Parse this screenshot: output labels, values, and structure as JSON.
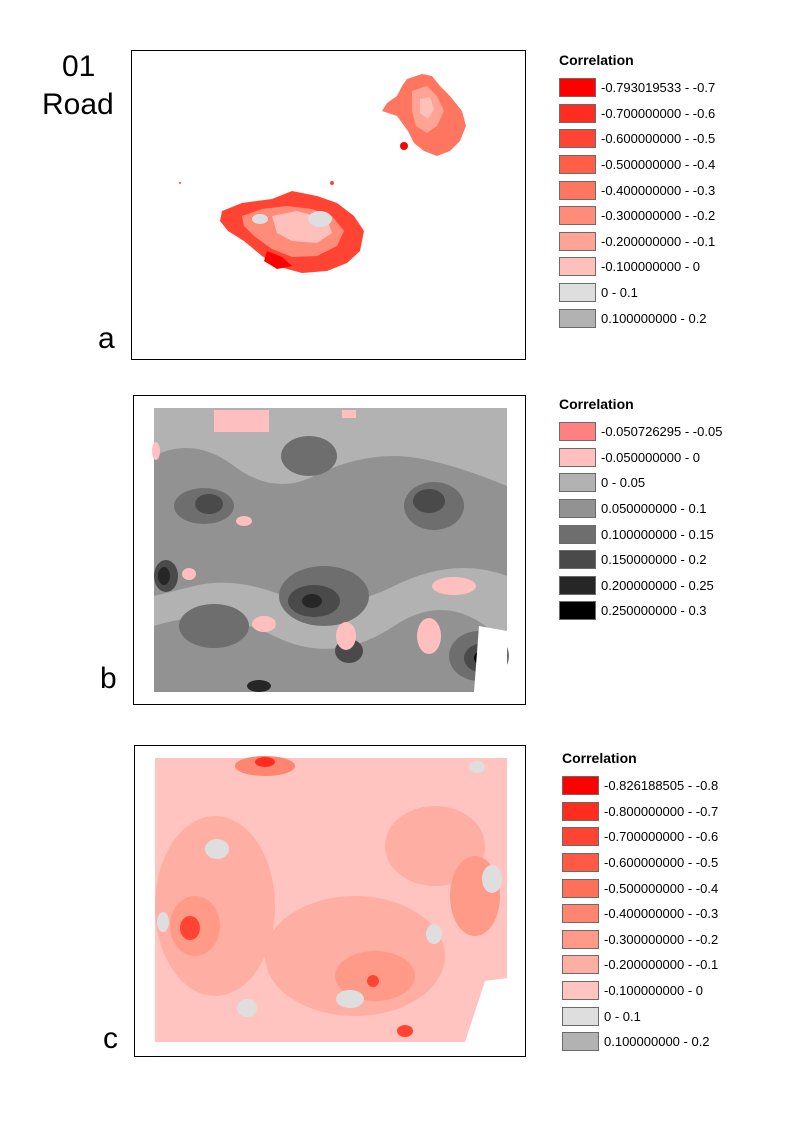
{
  "header": {
    "number": "01",
    "variable": "Road"
  },
  "panels": [
    {
      "letter": "a",
      "legend": {
        "title": "Correlation",
        "items": [
          {
            "label": "-0.793019533 - -0.7",
            "color": "#ff0000"
          },
          {
            "label": "-0.700000000 - -0.6",
            "color": "#ff2d1f"
          },
          {
            "label": "-0.600000000 - -0.5",
            "color": "#ff4433"
          },
          {
            "label": "-0.500000000 - -0.4",
            "color": "#ff5e49"
          },
          {
            "label": "-0.400000000 - -0.3",
            "color": "#ff7660"
          },
          {
            "label": "-0.300000000 - -0.2",
            "color": "#ff8c79"
          },
          {
            "label": "-0.200000000 - -0.1",
            "color": "#ffa394"
          },
          {
            "label": "-0.100000000 - 0",
            "color": "#ffc0bb"
          },
          {
            "label": "0 - 0.1",
            "color": "#dedede"
          },
          {
            "label": "0.100000000 - 0.2",
            "color": "#b2b2b2"
          }
        ]
      }
    },
    {
      "letter": "b",
      "legend": {
        "title": "Correlation",
        "items": [
          {
            "label": "-0.050726295 - -0.05",
            "color": "#ff8080"
          },
          {
            "label": "-0.050000000 - 0",
            "color": "#ffbfbf"
          },
          {
            "label": "0 - 0.05",
            "color": "#b2b2b2"
          },
          {
            "label": "0.050000000 - 0.1",
            "color": "#929292"
          },
          {
            "label": "0.100000000 - 0.15",
            "color": "#6e6e6e"
          },
          {
            "label": "0.150000000 - 0.2",
            "color": "#4a4a4a"
          },
          {
            "label": "0.200000000 - 0.25",
            "color": "#262626"
          },
          {
            "label": "0.250000000 - 0.3",
            "color": "#000000"
          }
        ]
      }
    },
    {
      "letter": "c",
      "legend": {
        "title": "Correlation",
        "items": [
          {
            "label": "-0.826188505 - -0.8",
            "color": "#ff0000"
          },
          {
            "label": "-0.800000000 - -0.7",
            "color": "#ff2d1f"
          },
          {
            "label": "-0.700000000 - -0.6",
            "color": "#ff4433"
          },
          {
            "label": "-0.600000000 - -0.5",
            "color": "#ff5a45"
          },
          {
            "label": "-0.500000000 - -0.4",
            "color": "#ff7059"
          },
          {
            "label": "-0.400000000 - -0.3",
            "color": "#ff8570"
          },
          {
            "label": "-0.300000000 - -0.2",
            "color": "#ff9a88"
          },
          {
            "label": "-0.200000000 - -0.1",
            "color": "#ffaea3"
          },
          {
            "label": "-0.100000000 - 0",
            "color": "#ffc4c0"
          },
          {
            "label": "0 - 0.1",
            "color": "#dedede"
          },
          {
            "label": "0.100000000 - 0.2",
            "color": "#b2b2b2"
          }
        ]
      }
    }
  ]
}
